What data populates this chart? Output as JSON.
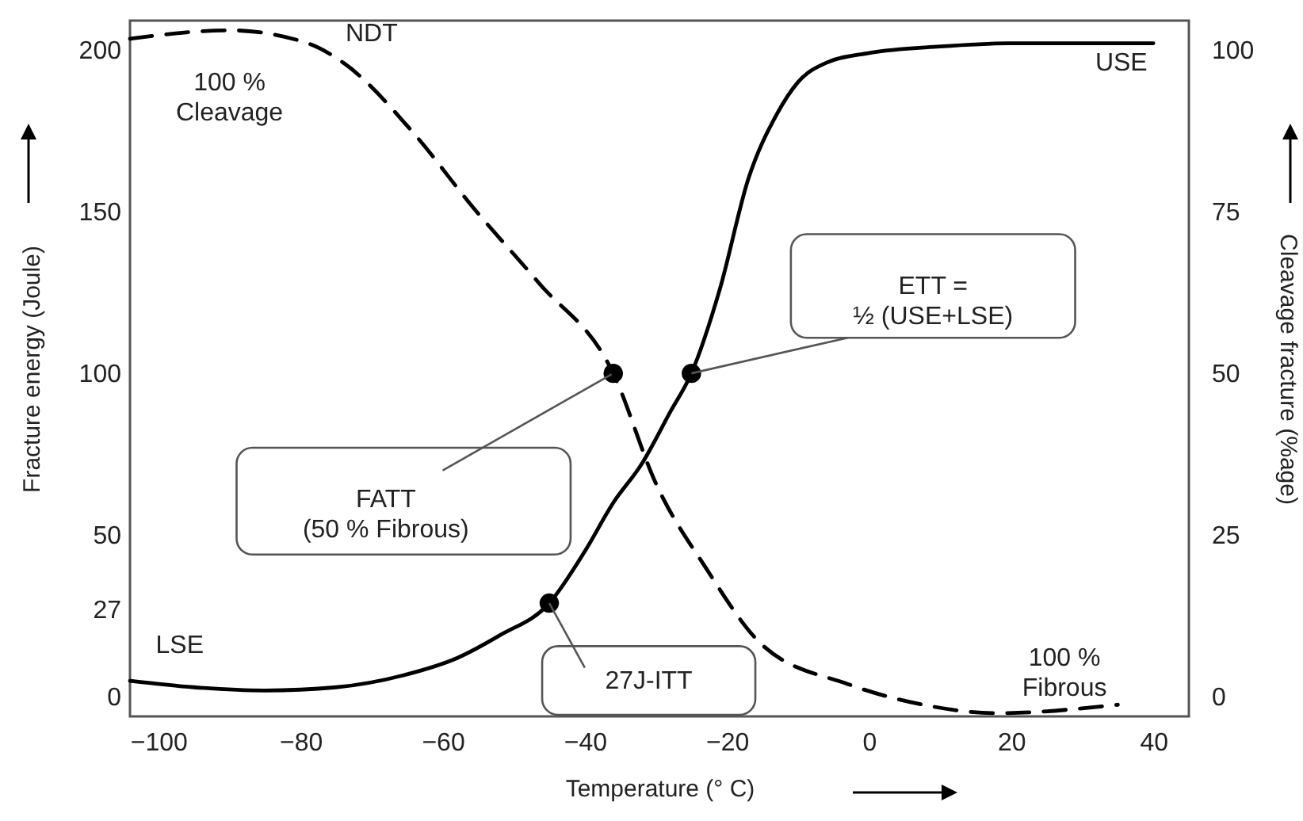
{
  "chart_data": {
    "type": "line",
    "xlabel": "Temperature (° C)",
    "ylabel": "Fracture energy (Joule)",
    "y2label": "Cleavage  fracture (%age)",
    "xlim": [
      -104,
      45
    ],
    "xticks": [
      -100,
      -80,
      -60,
      -40,
      -20,
      0,
      20,
      40
    ],
    "ylim": [
      -6,
      209
    ],
    "yticks": [
      0,
      27,
      50,
      100,
      150,
      200
    ],
    "y2lim": [
      -3,
      104.5
    ],
    "y2ticks": [
      0,
      25,
      50,
      75,
      100
    ],
    "grid": false,
    "series": [
      {
        "color": "#000000",
        "line_style": "solid",
        "x": [
          -104,
          -95,
          -85,
          -75,
          -65,
          -58,
          -52,
          -45,
          -40,
          -36,
          -32,
          -28,
          -25,
          -21,
          -17,
          -13,
          -10,
          -6,
          0,
          10,
          20,
          40
        ],
        "values": [
          5,
          3,
          2,
          3,
          7,
          12,
          19,
          29,
          45,
          60,
          72,
          88,
          100,
          126,
          160,
          180,
          190,
          196,
          199,
          201,
          202,
          202
        ]
      },
      {
        "color": "#000000",
        "line_style": "dashed",
        "axis": "y2",
        "x": [
          -104,
          -90,
          -79,
          -74,
          -64,
          -56,
          -46.5,
          -36,
          -30,
          -23,
          -15,
          -3,
          7.6,
          18,
          35
        ],
        "values": [
          101.7,
          103,
          101,
          98,
          87,
          76,
          64,
          50,
          33,
          20,
          8,
          2,
          -1.2,
          -2.5,
          -1.2
        ]
      },
      {
        "type": "scatter",
        "color": "#000000",
        "marker": "circle",
        "x": [
          -45,
          -36,
          -25
        ],
        "values": [
          29,
          100,
          100
        ]
      }
    ],
    "annotations": [
      "NDT",
      "100 %\nCleavage",
      "USE",
      "LSE",
      "100 %\nFibrous",
      {
        "text": "ETT =\n½ (USE+LSE)",
        "x": -25,
        "y": 100
      },
      {
        "text": "FATT\n(50 % Fibrous)",
        "x": -36,
        "y": 100
      },
      {
        "text": "27J-ITT",
        "x": -45,
        "y": 29
      }
    ]
  }
}
